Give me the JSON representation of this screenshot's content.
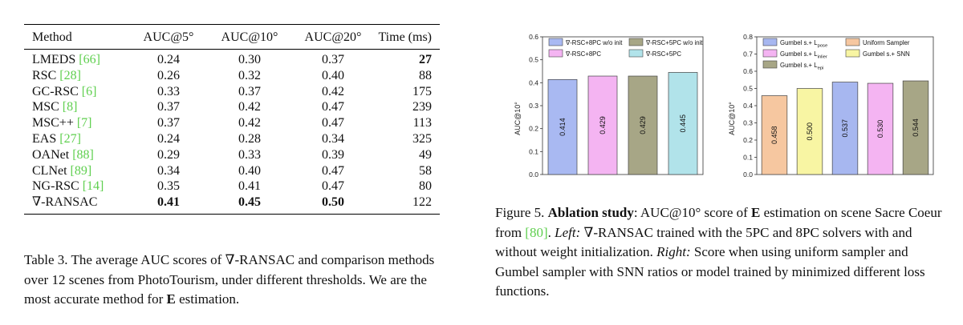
{
  "table": {
    "headers": [
      "Method",
      "AUC@5°",
      "AUC@10°",
      "AUC@20°",
      "Time (ms)"
    ],
    "rows": [
      {
        "name": "LMEDS ",
        "ref": "[66]",
        "auc5": "0.24",
        "auc10": "0.30",
        "auc20": "0.37",
        "time": "27"
      },
      {
        "name": "RSC ",
        "ref": "[28]",
        "auc5": "0.26",
        "auc10": "0.32",
        "auc20": "0.40",
        "time": "88"
      },
      {
        "name": "GC-RSC ",
        "ref": "[6]",
        "auc5": "0.33",
        "auc10": "0.37",
        "auc20": "0.42",
        "time": "175"
      },
      {
        "name": "MSC ",
        "ref": "[8]",
        "auc5": "0.37",
        "auc10": "0.42",
        "auc20": "0.47",
        "time": "239"
      },
      {
        "name": "MSC++ ",
        "ref": "[7]",
        "auc5": "0.37",
        "auc10": "0.42",
        "auc20": "0.47",
        "time": "113"
      },
      {
        "name": "EAS ",
        "ref": "[27]",
        "auc5": "0.24",
        "auc10": "0.28",
        "auc20": "0.34",
        "time": "325"
      },
      {
        "name": "OANet ",
        "ref": "[88]",
        "auc5": "0.29",
        "auc10": "0.33",
        "auc20": "0.39",
        "time": "49"
      },
      {
        "name": "CLNet ",
        "ref": "[89]",
        "auc5": "0.34",
        "auc10": "0.40",
        "auc20": "0.47",
        "time": "58"
      },
      {
        "name": "NG-RSC ",
        "ref": "[14]",
        "auc5": "0.35",
        "auc10": "0.41",
        "auc20": "0.47",
        "time": "80"
      },
      {
        "name": "∇-RANSAC",
        "ref": "",
        "auc5": "0.41",
        "auc10": "0.45",
        "auc20": "0.50",
        "time": "122"
      }
    ]
  },
  "table_caption": {
    "label": "Table 3.",
    "text": " The average AUC scores of ∇-RANSAC and comparison methods over 12 scenes from PhotoTourism, under different thresholds. We are the most accurate method for ",
    "bold_E": "E",
    "tail": " estimation."
  },
  "figure_caption": {
    "label": "Figure 5. ",
    "bold": "Ablation study",
    "t1": ": AUC@10° score of ",
    "E": "E",
    "t2": " estimation on scene Sacre Coeur from ",
    "ref": "[80]",
    "t3": ". ",
    "left_label": "Left:",
    "t4": " ∇-RANSAC trained with the 5PC and 8PC solvers with and without weight initialization. ",
    "right_label": "Right:",
    "t5": " Score when using uniform sampler and Gumbel sampler with SNN ratios or model trained by minimized different loss functions."
  },
  "chart_data": [
    {
      "type": "bar",
      "ylabel": "AUC@10°",
      "ylim": [
        0,
        0.6
      ],
      "yticks": [
        "0.0",
        "0.1",
        "0.2",
        "0.3",
        "0.4",
        "0.5",
        "0.6"
      ],
      "bars": [
        {
          "legend": "∇-RSC+8PC w/o init",
          "value": 0.414,
          "label": "0.414",
          "color": "#a9b9f2"
        },
        {
          "legend": "∇-RSC+8PC",
          "value": 0.429,
          "label": "0.429",
          "color": "#f4b4f2"
        },
        {
          "legend": "∇-RSC+5PC w/o init",
          "value": 0.429,
          "label": "0.429",
          "color": "#a7a686"
        },
        {
          "legend": "∇-RSC+5PC",
          "value": 0.445,
          "label": "0.445",
          "color": "#b1e3ea"
        }
      ]
    },
    {
      "type": "bar",
      "ylabel": "AUC@10°",
      "ylim": [
        0,
        0.8
      ],
      "yticks": [
        "0.0",
        "0.1",
        "0.2",
        "0.3",
        "0.4",
        "0.5",
        "0.6",
        "0.7",
        "0.8"
      ],
      "bars": [
        {
          "legend": "Uniform Sampler",
          "value": 0.458,
          "label": "0.458",
          "color": "#f6c7a0"
        },
        {
          "legend": "Gumbel s.+ SNN",
          "value": 0.5,
          "label": "0.500",
          "color": "#f8f5a3"
        },
        {
          "legend": "Gumbel s.+ L",
          "sub": "pose",
          "value": 0.537,
          "label": "0.537",
          "color": "#a7b7f0"
        },
        {
          "legend": "Gumbel s.+ L",
          "sub": "inlier",
          "value": 0.53,
          "label": "0.530",
          "color": "#f4b4f2"
        },
        {
          "legend": "Gumbel s.+ L",
          "sub": "epi",
          "value": 0.544,
          "label": "0.544",
          "color": "#a7a686"
        }
      ]
    }
  ]
}
